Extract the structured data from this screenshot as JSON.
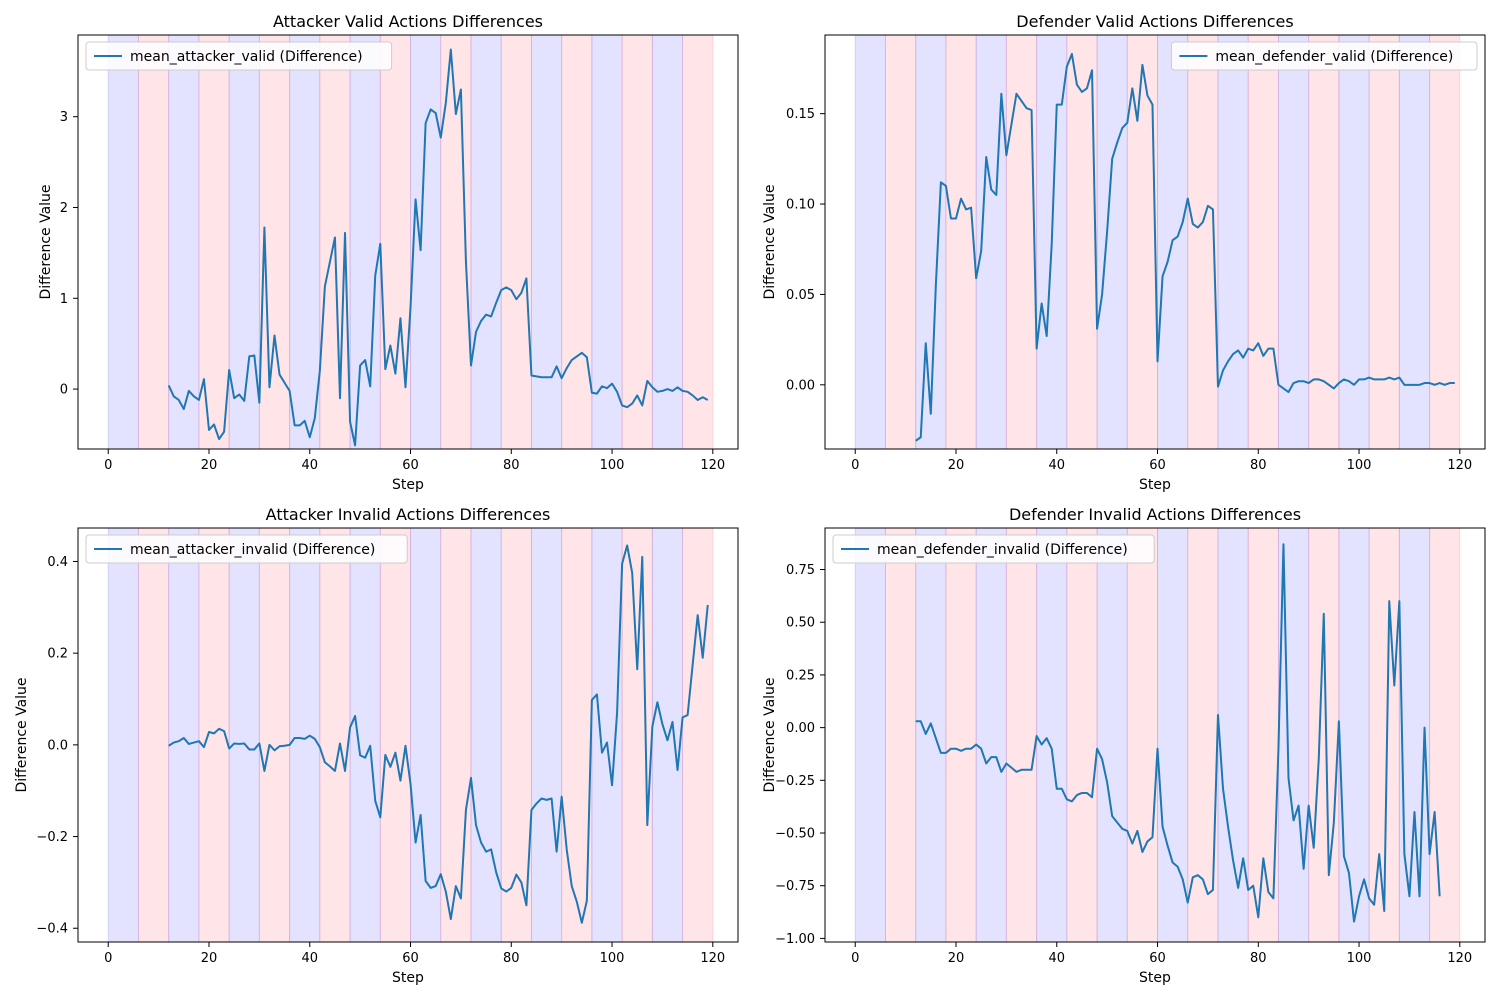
{
  "chart_data": [
    {
      "type": "line",
      "title": "Attacker Valid Actions Differences",
      "xlabel": "Step",
      "ylabel": "Difference Value",
      "xlim": [
        -6,
        125
      ],
      "ylim": [
        -0.66,
        3.9
      ],
      "xticks": [
        0,
        20,
        40,
        60,
        80,
        100,
        120
      ],
      "yticks": [
        0,
        1,
        2,
        3
      ],
      "grid": false,
      "legend_position": "upper left",
      "shaded_bands": {
        "start": 0,
        "end": 120,
        "width": 6,
        "colors": [
          "#6666ff",
          "#ff6f7f"
        ],
        "alpha": 0.18
      },
      "series": [
        {
          "name": "mean_attacker_valid (Difference)",
          "color": "#1f77b4",
          "x_start": 12,
          "values": [
            0.04,
            -0.08,
            -0.12,
            -0.22,
            -0.02,
            -0.08,
            -0.12,
            0.11,
            -0.45,
            -0.39,
            -0.55,
            -0.47,
            0.21,
            -0.1,
            -0.06,
            -0.13,
            0.36,
            0.37,
            -0.15,
            1.78,
            0.02,
            0.59,
            0.16,
            0.07,
            -0.02,
            -0.4,
            -0.4,
            -0.35,
            -0.53,
            -0.32,
            0.2,
            1.13,
            1.4,
            1.67,
            -0.1,
            1.72,
            -0.36,
            -0.62,
            0.26,
            0.32,
            0.03,
            1.25,
            1.6,
            0.22,
            0.48,
            0.17,
            0.78,
            0.02,
            0.9,
            2.09,
            1.53,
            2.93,
            3.08,
            3.04,
            2.77,
            3.15,
            3.74,
            3.03,
            3.3,
            1.4,
            0.26,
            0.63,
            0.75,
            0.82,
            0.8,
            0.95,
            1.09,
            1.12,
            1.09,
            0.99,
            1.06,
            1.22,
            0.15,
            0.14,
            0.13,
            0.13,
            0.13,
            0.25,
            0.12,
            0.23,
            0.32,
            0.36,
            0.4,
            0.35,
            -0.04,
            -0.05,
            0.03,
            0.01,
            0.06,
            -0.03,
            -0.18,
            -0.2,
            -0.16,
            -0.07,
            -0.18,
            0.09,
            0.02,
            -0.03,
            -0.02,
            0.0,
            -0.02,
            0.02,
            -0.02,
            -0.03,
            -0.07,
            -0.12,
            -0.09,
            -0.12
          ]
        }
      ]
    },
    {
      "type": "line",
      "title": "Defender Valid Actions Differences",
      "xlabel": "Step",
      "ylabel": "Difference Value",
      "xlim": [
        -6,
        125
      ],
      "ylim": [
        -0.0355,
        0.1935
      ],
      "xticks": [
        0,
        20,
        40,
        60,
        80,
        100,
        120
      ],
      "yticks": [
        0.0,
        0.05,
        0.1,
        0.15
      ],
      "y_tick_decimals": 2,
      "grid": false,
      "legend_position": "upper right",
      "shaded_bands": {
        "start": 0,
        "end": 120,
        "width": 6,
        "colors": [
          "#6666ff",
          "#ff6f7f"
        ],
        "alpha": 0.18
      },
      "series": [
        {
          "name": "mean_defender_valid (Difference)",
          "color": "#1f77b4",
          "x_start": 12,
          "values": [
            -0.031,
            -0.029,
            0.023,
            -0.016,
            0.055,
            0.112,
            0.11,
            0.092,
            0.092,
            0.103,
            0.097,
            0.098,
            0.059,
            0.074,
            0.126,
            0.108,
            0.105,
            0.161,
            0.127,
            0.144,
            0.161,
            0.157,
            0.153,
            0.152,
            0.02,
            0.045,
            0.027,
            0.078,
            0.155,
            0.155,
            0.176,
            0.183,
            0.166,
            0.162,
            0.164,
            0.174,
            0.031,
            0.05,
            0.085,
            0.125,
            0.134,
            0.142,
            0.145,
            0.164,
            0.146,
            0.177,
            0.16,
            0.155,
            0.013,
            0.06,
            0.068,
            0.08,
            0.082,
            0.09,
            0.103,
            0.089,
            0.087,
            0.09,
            0.099,
            0.097,
            -0.001,
            0.008,
            0.013,
            0.017,
            0.019,
            0.015,
            0.02,
            0.019,
            0.023,
            0.016,
            0.02,
            0.02,
            0.0,
            -0.002,
            -0.004,
            0.001,
            0.002,
            0.002,
            0.001,
            0.003,
            0.003,
            0.002,
            0.0,
            -0.002,
            0.001,
            0.003,
            0.002,
            0.0,
            0.003,
            0.003,
            0.004,
            0.003,
            0.003,
            0.003,
            0.004,
            0.003,
            0.004,
            0.0,
            0.0,
            0.0,
            0.0,
            0.001,
            0.001,
            0.0,
            0.001,
            0.0,
            0.001,
            0.001
          ]
        }
      ]
    },
    {
      "type": "line",
      "title": "Attacker Invalid Actions Differences",
      "xlabel": "Step",
      "ylabel": "Difference Value",
      "xlim": [
        -6,
        125
      ],
      "ylim": [
        -0.43,
        0.473
      ],
      "xticks": [
        0,
        20,
        40,
        60,
        80,
        100,
        120
      ],
      "yticks": [
        -0.4,
        -0.2,
        0.0,
        0.2,
        0.4
      ],
      "y_tick_decimals": 1,
      "grid": false,
      "legend_position": "upper left",
      "shaded_bands": {
        "start": 0,
        "end": 120,
        "width": 6,
        "colors": [
          "#6666ff",
          "#ff6f7f"
        ],
        "alpha": 0.18
      },
      "series": [
        {
          "name": "mean_attacker_invalid (Difference)",
          "color": "#1f77b4",
          "x_start": 12,
          "values": [
            -0.002,
            0.005,
            0.008,
            0.015,
            0.002,
            0.005,
            0.008,
            -0.005,
            0.028,
            0.025,
            0.035,
            0.03,
            -0.008,
            0.003,
            0.002,
            0.003,
            -0.01,
            -0.01,
            0.003,
            -0.057,
            0.0,
            -0.012,
            -0.003,
            -0.002,
            0.0,
            0.015,
            0.015,
            0.013,
            0.02,
            0.013,
            -0.005,
            -0.038,
            -0.047,
            -0.057,
            0.003,
            -0.057,
            0.038,
            0.063,
            -0.023,
            -0.028,
            -0.002,
            -0.122,
            -0.158,
            -0.022,
            -0.048,
            -0.017,
            -0.078,
            -0.002,
            -0.085,
            -0.213,
            -0.153,
            -0.297,
            -0.312,
            -0.308,
            -0.282,
            -0.32,
            -0.38,
            -0.308,
            -0.335,
            -0.142,
            -0.072,
            -0.175,
            -0.213,
            -0.233,
            -0.228,
            -0.278,
            -0.313,
            -0.32,
            -0.312,
            -0.283,
            -0.3,
            -0.35,
            -0.142,
            -0.128,
            -0.117,
            -0.12,
            -0.117,
            -0.233,
            -0.113,
            -0.228,
            -0.308,
            -0.342,
            -0.388,
            -0.34,
            0.098,
            0.11,
            -0.017,
            0.005,
            -0.088,
            0.07,
            0.395,
            0.435,
            0.375,
            0.165,
            0.41,
            -0.175,
            0.04,
            0.093,
            0.045,
            0.01,
            0.05,
            -0.055,
            0.06,
            0.065,
            0.175,
            0.283,
            0.19,
            0.305
          ]
        }
      ]
    },
    {
      "type": "line",
      "title": "Defender Invalid Actions Differences",
      "xlabel": "Step",
      "ylabel": "Difference Value",
      "xlim": [
        -6,
        125
      ],
      "ylim": [
        -1.017,
        0.947
      ],
      "xticks": [
        0,
        20,
        40,
        60,
        80,
        100,
        120
      ],
      "yticks": [
        -1.0,
        -0.75,
        -0.5,
        -0.25,
        0.0,
        0.25,
        0.5,
        0.75
      ],
      "y_tick_decimals": 2,
      "grid": false,
      "legend_position": "upper left",
      "shaded_bands": {
        "start": 0,
        "end": 120,
        "width": 6,
        "colors": [
          "#6666ff",
          "#ff6f7f"
        ],
        "alpha": 0.18
      },
      "series": [
        {
          "name": "mean_defender_invalid (Difference)",
          "color": "#1f77b4",
          "x_start": 12,
          "values": [
            0.03,
            0.03,
            -0.03,
            0.02,
            -0.05,
            -0.12,
            -0.12,
            -0.1,
            -0.1,
            -0.11,
            -0.1,
            -0.1,
            -0.08,
            -0.1,
            -0.17,
            -0.14,
            -0.14,
            -0.21,
            -0.17,
            -0.19,
            -0.21,
            -0.2,
            -0.2,
            -0.2,
            -0.04,
            -0.08,
            -0.05,
            -0.1,
            -0.29,
            -0.29,
            -0.34,
            -0.35,
            -0.32,
            -0.31,
            -0.31,
            -0.33,
            -0.1,
            -0.15,
            -0.26,
            -0.42,
            -0.45,
            -0.48,
            -0.49,
            -0.55,
            -0.49,
            -0.59,
            -0.54,
            -0.52,
            -0.1,
            -0.47,
            -0.56,
            -0.64,
            -0.66,
            -0.72,
            -0.83,
            -0.71,
            -0.7,
            -0.72,
            -0.79,
            -0.77,
            0.06,
            -0.29,
            -0.47,
            -0.63,
            -0.76,
            -0.62,
            -0.77,
            -0.75,
            -0.9,
            -0.62,
            -0.78,
            -0.81,
            -0.1,
            0.87,
            -0.24,
            -0.44,
            -0.37,
            -0.67,
            -0.37,
            -0.57,
            -0.15,
            0.54,
            -0.7,
            -0.45,
            0.03,
            -0.61,
            -0.69,
            -0.92,
            -0.8,
            -0.72,
            -0.81,
            -0.84,
            -0.6,
            -0.87,
            0.6,
            0.2,
            0.6,
            -0.6,
            -0.8,
            -0.4,
            -0.8,
            0.0,
            -0.6,
            -0.4,
            -0.8
          ]
        }
      ]
    }
  ]
}
